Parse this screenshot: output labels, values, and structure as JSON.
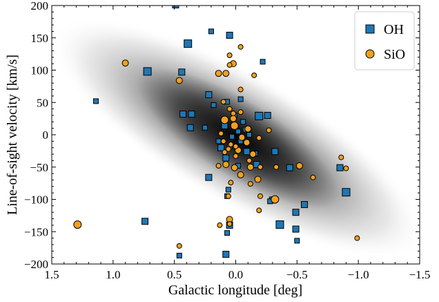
{
  "chart_data": {
    "type": "scatter",
    "xlabel": "Galactic longitude [deg]",
    "ylabel": "Line-of-sight velocity [km/s]",
    "xlim": [
      1.5,
      -1.5
    ],
    "ylim": [
      -200,
      200
    ],
    "x_ticks": [
      "1.5",
      "1.0",
      "0.5",
      "0.0",
      "−0.5",
      "−1.0",
      "−1.5"
    ],
    "y_ticks": [
      "−200",
      "−150",
      "−100",
      "−50",
      "0",
      "50",
      "100",
      "150",
      "200"
    ],
    "legend": {
      "position": "top-right",
      "entries": [
        "OH",
        "SiO"
      ]
    },
    "background": "grayscale 2D density of stars, elongated along the diagonal trend",
    "series": [
      {
        "name": "OH",
        "marker": "square",
        "color": "#1f77b4",
        "points": [
          [
            0.49,
            201,
            9
          ],
          [
            0.2,
            160,
            7
          ],
          [
            0.05,
            154,
            9
          ],
          [
            0.39,
            141,
            11
          ],
          [
            -0.22,
            113,
            7
          ],
          [
            0.72,
            98,
            11
          ],
          [
            0.44,
            97,
            9
          ],
          [
            1.14,
            52,
            7
          ],
          [
            0.22,
            62,
            9
          ],
          [
            0.07,
            51,
            7
          ],
          [
            0.43,
            32,
            9
          ],
          [
            0.36,
            32,
            9
          ],
          [
            0.18,
            46,
            7
          ],
          [
            -0.04,
            55,
            7
          ],
          [
            -0.26,
            30,
            9
          ],
          [
            -0.19,
            29,
            11
          ],
          [
            0.37,
            11,
            9
          ],
          [
            0.25,
            11,
            7
          ],
          [
            0.01,
            30,
            7
          ],
          [
            -0.06,
            20,
            7
          ],
          [
            -0.11,
            0,
            7
          ],
          [
            0.09,
            14,
            9
          ],
          [
            -0.02,
            5,
            7
          ],
          [
            -0.08,
            8,
            7
          ],
          [
            0.03,
            -3,
            7
          ],
          [
            0.14,
            -10,
            7
          ],
          [
            0.12,
            -20,
            9
          ],
          [
            -0.09,
            -26,
            9
          ],
          [
            -0.16,
            -29,
            7
          ],
          [
            -0.32,
            -26,
            9
          ],
          [
            -0.04,
            -10,
            7
          ],
          [
            0.08,
            -36,
            9
          ],
          [
            -0.17,
            -46,
            9
          ],
          [
            -0.44,
            -51,
            9
          ],
          [
            0.22,
            -66,
            9
          ],
          [
            -0.85,
            -51,
            9
          ],
          [
            0.06,
            -85,
            7
          ],
          [
            0.07,
            -95,
            7
          ],
          [
            -0.3,
            -101,
            9
          ],
          [
            -0.56,
            -108,
            9
          ],
          [
            -0.28,
            -103,
            7
          ],
          [
            -0.49,
            -120,
            9
          ],
          [
            -0.9,
            -89,
            11
          ],
          [
            0.74,
            -134,
            9
          ],
          [
            -0.36,
            -139,
            11
          ],
          [
            0.05,
            -140,
            9
          ],
          [
            -0.49,
            -146,
            9
          ],
          [
            0.07,
            -152,
            7
          ],
          [
            -0.5,
            -164,
            7
          ],
          [
            0.46,
            -187,
            7
          ],
          [
            0.08,
            -185,
            9
          ],
          [
            0.05,
            -19,
            7
          ],
          [
            -0.02,
            -48,
            7
          ]
        ]
      },
      {
        "name": "SiO",
        "marker": "circle",
        "color": "#f0a020",
        "points": [
          [
            0.9,
            111,
            9
          ],
          [
            -0.04,
            136,
            7
          ],
          [
            0.05,
            123,
            7
          ],
          [
            0.02,
            110,
            9
          ],
          [
            0.14,
            95,
            9
          ],
          [
            0.08,
            95,
            9
          ],
          [
            -0.15,
            92,
            7
          ],
          [
            0.05,
            108,
            7
          ],
          [
            0.46,
            84,
            9
          ],
          [
            -0.04,
            70,
            7
          ],
          [
            0.1,
            51,
            7
          ],
          [
            0.05,
            40,
            7
          ],
          [
            0.02,
            33,
            7
          ],
          [
            -0.04,
            35,
            7
          ],
          [
            0.02,
            25,
            9
          ],
          [
            0.09,
            23,
            11
          ],
          [
            0.01,
            14,
            11
          ],
          [
            -0.1,
            9,
            9
          ],
          [
            -0.27,
            7,
            7
          ],
          [
            0.12,
            2,
            7
          ],
          [
            -0.05,
            -4,
            9
          ],
          [
            -0.19,
            -5,
            7
          ],
          [
            0.1,
            -10,
            7
          ],
          [
            -0.09,
            -12,
            9
          ],
          [
            0.04,
            -15,
            7
          ],
          [
            0.06,
            -22,
            7
          ],
          [
            -0.02,
            -24,
            9
          ],
          [
            0.09,
            -27,
            7
          ],
          [
            -0.14,
            -30,
            9
          ],
          [
            0.08,
            -46,
            9
          ],
          [
            0.14,
            -48,
            7
          ],
          [
            0.01,
            -51,
            9
          ],
          [
            -0.12,
            -50,
            9
          ],
          [
            -0.2,
            -50,
            7
          ],
          [
            -0.33,
            -50,
            7
          ],
          [
            -0.52,
            -48,
            9
          ],
          [
            -0.86,
            -35,
            7
          ],
          [
            -0.9,
            -52,
            7
          ],
          [
            0.0,
            -33,
            7
          ],
          [
            -0.11,
            -40,
            7
          ],
          [
            -0.04,
            -62,
            9
          ],
          [
            -0.18,
            -69,
            9
          ],
          [
            0.04,
            -74,
            7
          ],
          [
            -0.12,
            -76,
            7
          ],
          [
            0.06,
            -95,
            7
          ],
          [
            -0.2,
            -95,
            7
          ],
          [
            -0.32,
            -100,
            11
          ],
          [
            -0.19,
            -117,
            7
          ],
          [
            0.05,
            -131,
            9
          ],
          [
            0.05,
            -138,
            7
          ],
          [
            0.13,
            -140,
            7
          ],
          [
            -0.63,
            -66,
            7
          ],
          [
            1.29,
            -139,
            11
          ],
          [
            0.46,
            -172,
            7
          ],
          [
            -0.99,
            -160,
            7
          ],
          [
            0.0,
            -18,
            7
          ]
        ]
      }
    ]
  }
}
